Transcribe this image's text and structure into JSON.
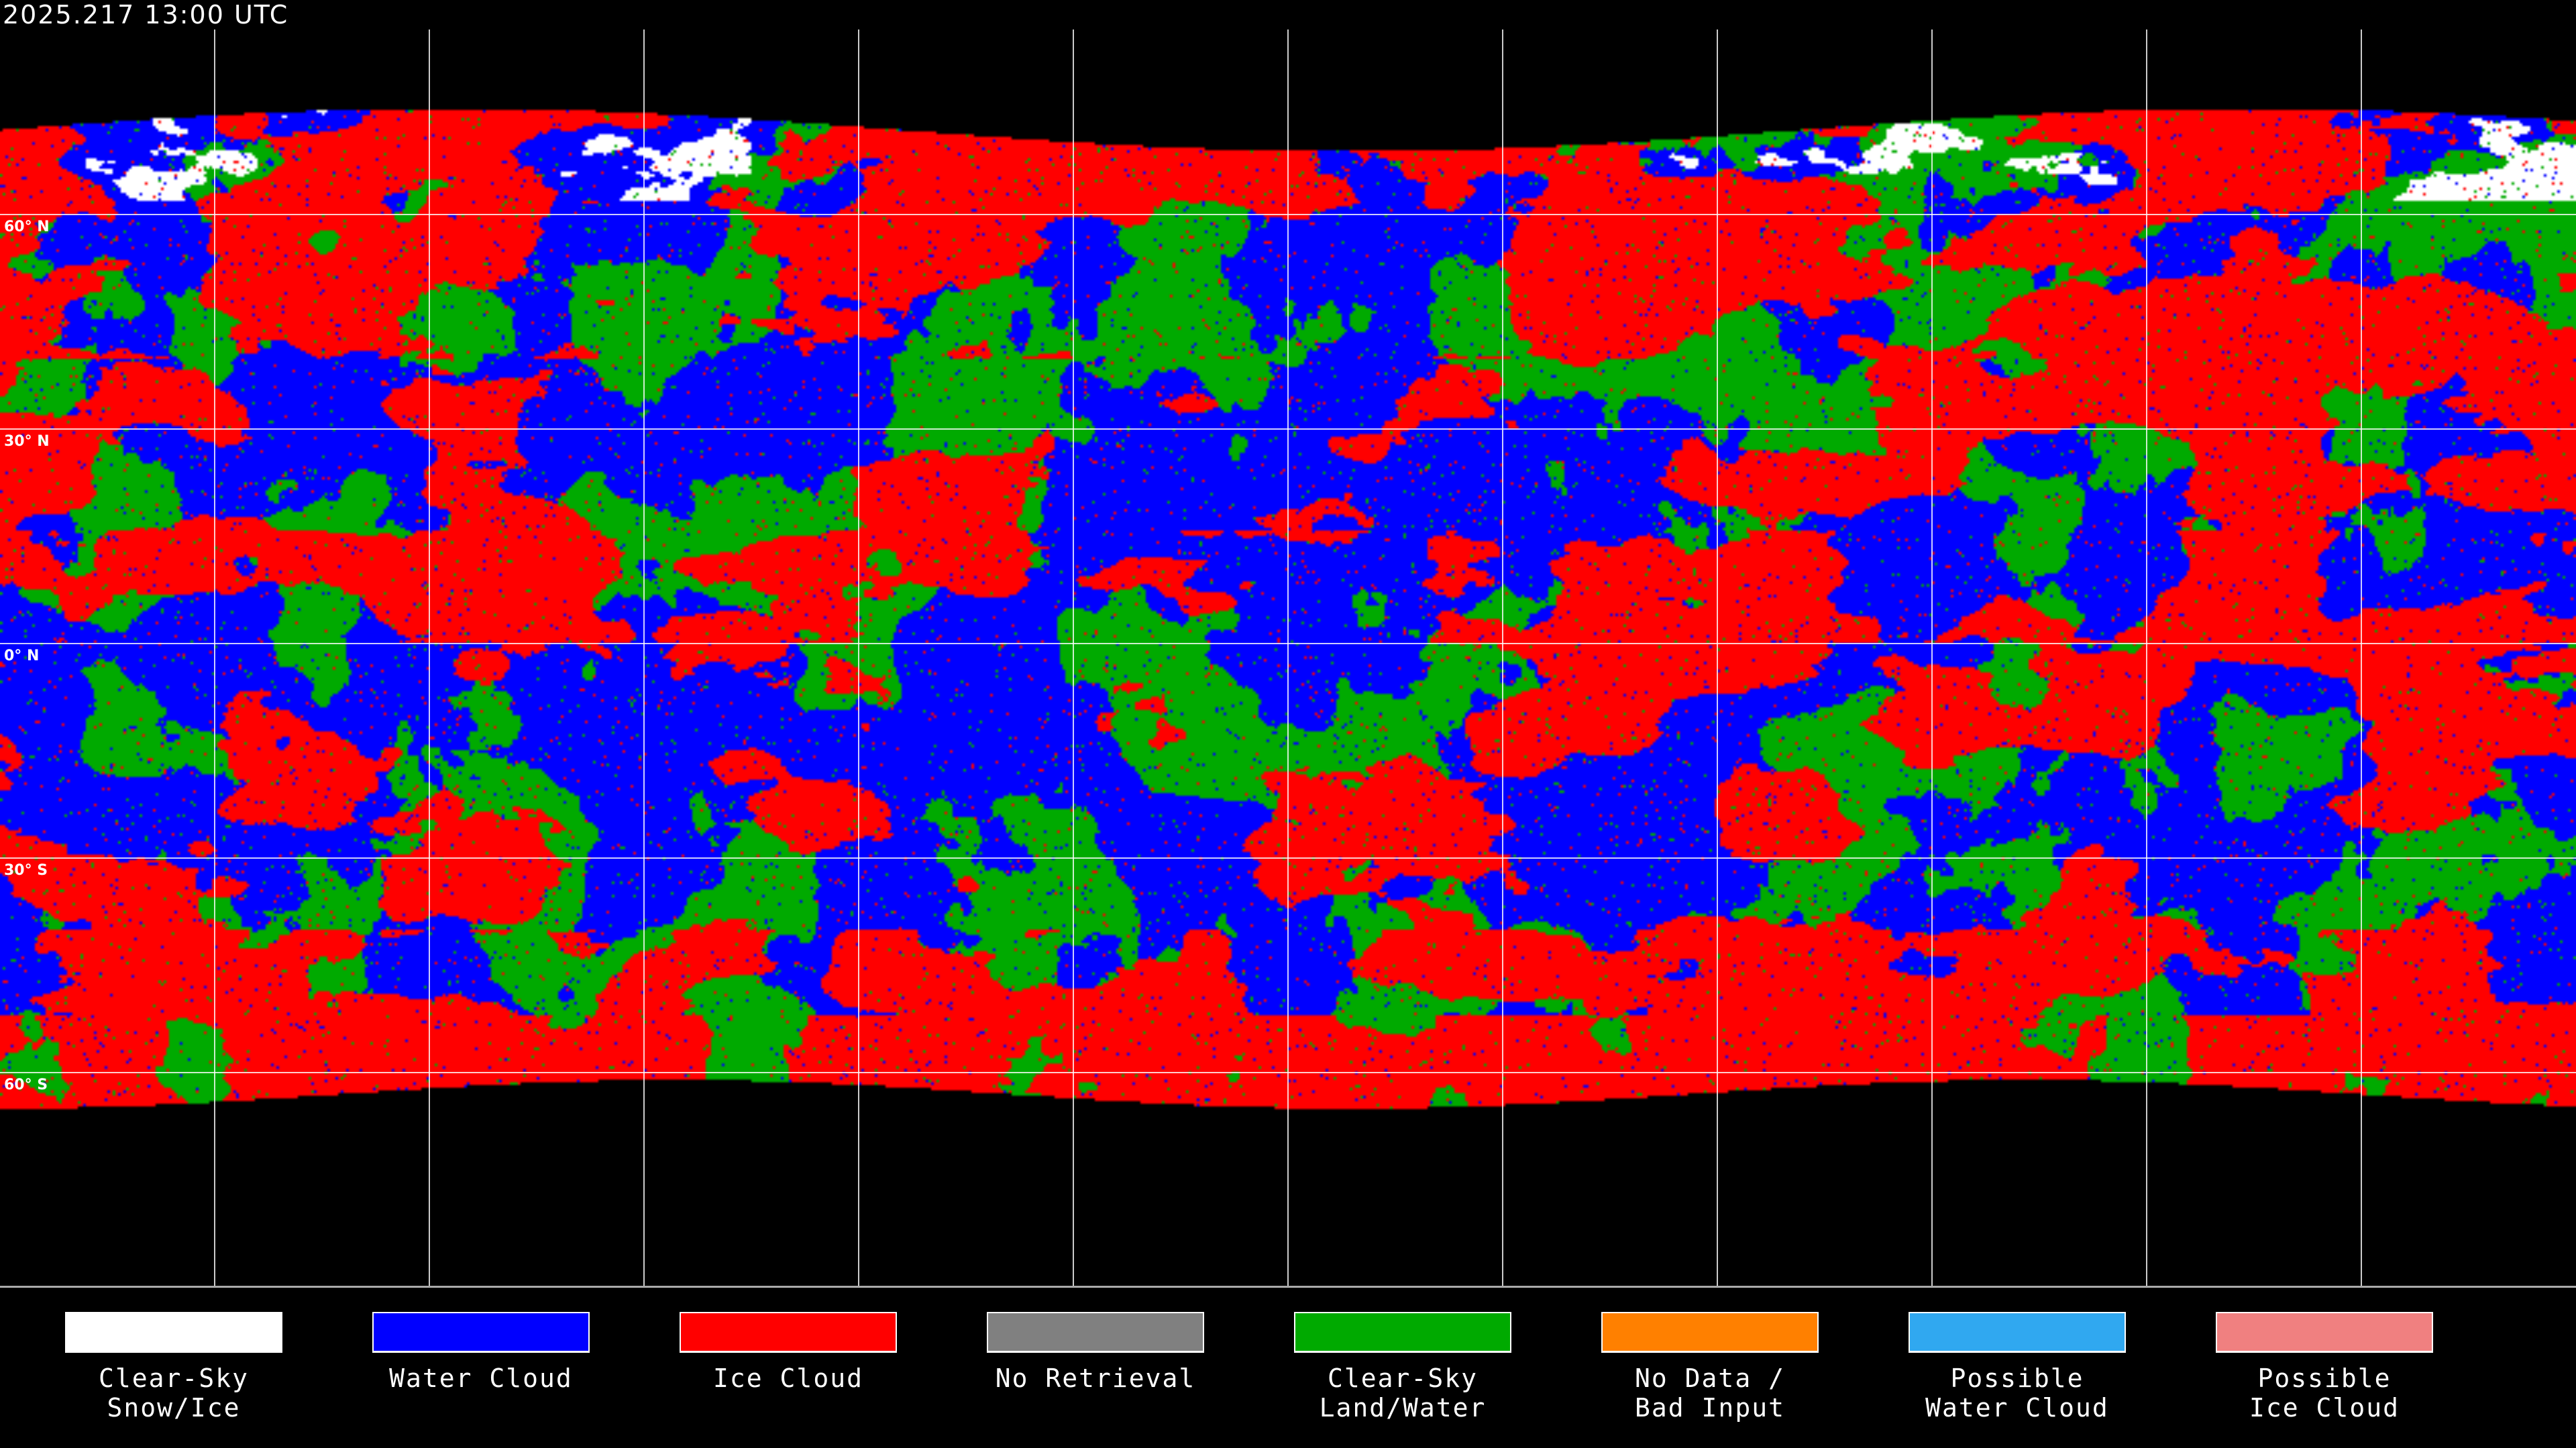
{
  "title": "2025.217 13:00 UTC",
  "map": {
    "projection": "equirectangular",
    "gridlines": {
      "longitude_step_deg": 30,
      "latitude_step_deg": 30,
      "color": "#ffffff"
    },
    "lat_labels": [
      "60° N",
      "30° N",
      "0° N",
      "30° S",
      "60° S"
    ]
  },
  "legend": [
    {
      "line1": "Clear-Sky",
      "line2": "Snow/Ice",
      "color": "#ffffff"
    },
    {
      "line1": "Water Cloud",
      "line2": "",
      "color": "#0000ff"
    },
    {
      "line1": "Ice Cloud",
      "line2": "",
      "color": "#ff0000"
    },
    {
      "line1": "No Retrieval",
      "line2": "",
      "color": "#808080"
    },
    {
      "line1": "Clear-Sky",
      "line2": "Land/Water",
      "color": "#00aa00"
    },
    {
      "line1": "No Data /",
      "line2": "Bad Input",
      "color": "#ff8000"
    },
    {
      "line1": "Possible",
      "line2": "Water Cloud",
      "color": "#30a8f0"
    },
    {
      "line1": "Possible",
      "line2": "Ice Cloud",
      "color": "#f08080"
    }
  ]
}
